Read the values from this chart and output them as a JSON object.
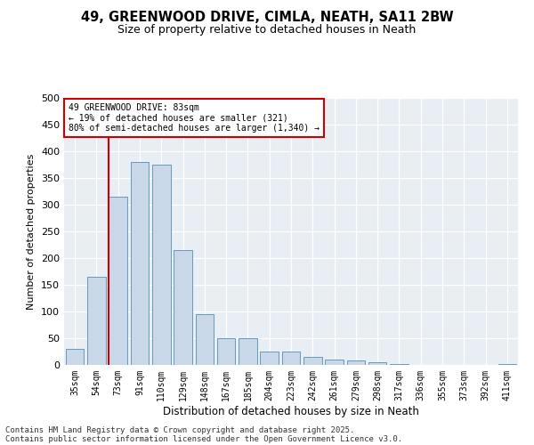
{
  "title_line1": "49, GREENWOOD DRIVE, CIMLA, NEATH, SA11 2BW",
  "title_line2": "Size of property relative to detached houses in Neath",
  "xlabel": "Distribution of detached houses by size in Neath",
  "ylabel": "Number of detached properties",
  "categories": [
    "35sqm",
    "54sqm",
    "73sqm",
    "91sqm",
    "110sqm",
    "129sqm",
    "148sqm",
    "167sqm",
    "185sqm",
    "204sqm",
    "223sqm",
    "242sqm",
    "261sqm",
    "279sqm",
    "298sqm",
    "317sqm",
    "336sqm",
    "355sqm",
    "373sqm",
    "392sqm",
    "411sqm"
  ],
  "values": [
    30,
    165,
    315,
    380,
    375,
    215,
    95,
    50,
    50,
    25,
    25,
    15,
    10,
    8,
    5,
    2,
    0,
    0,
    0,
    0,
    1
  ],
  "bar_color": "#c8d8e8",
  "bar_edgecolor": "#6699bb",
  "vline_index": 2,
  "vline_color": "#cc0000",
  "annotation_text": "49 GREENWOOD DRIVE: 83sqm\n← 19% of detached houses are smaller (321)\n80% of semi-detached houses are larger (1,340) →",
  "annotation_box_edgecolor": "#cc0000",
  "annotation_box_facecolor": "#ffffff",
  "ylim": [
    0,
    500
  ],
  "yticks": [
    0,
    50,
    100,
    150,
    200,
    250,
    300,
    350,
    400,
    450,
    500
  ],
  "background_color": "#e8eef4",
  "footer_line1": "Contains HM Land Registry data © Crown copyright and database right 2025.",
  "footer_line2": "Contains public sector information licensed under the Open Government Licence v3.0.",
  "title_fontsize": 10.5,
  "subtitle_fontsize": 9,
  "tick_fontsize": 7,
  "ylabel_fontsize": 8,
  "xlabel_fontsize": 8.5,
  "footer_fontsize": 6.5
}
